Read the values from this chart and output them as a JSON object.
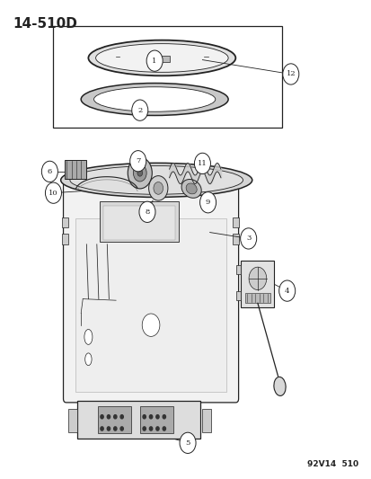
{
  "title": "14-510D",
  "watermark": "92V14  510",
  "bg_color": "#ffffff",
  "line_color": "#222222",
  "fig_width": 4.14,
  "fig_height": 5.33,
  "dpi": 100
}
